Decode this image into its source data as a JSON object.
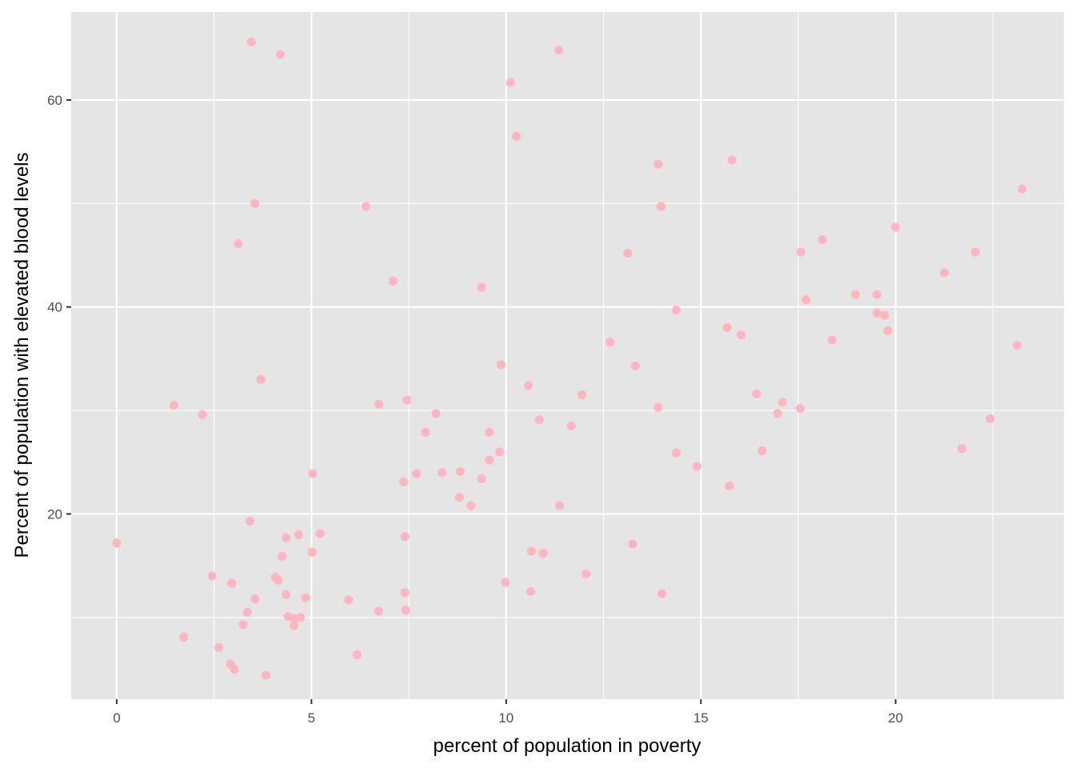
{
  "chart_data": {
    "type": "scatter",
    "xlabel": "percent of population in poverty",
    "ylabel": "Percent of population with elevated blood levels",
    "xlim": [
      -1.17,
      24.32
    ],
    "ylim": [
      2.1,
      68.5
    ],
    "x_ticks": [
      0,
      5,
      10,
      15,
      20
    ],
    "y_ticks": [
      20,
      40,
      60
    ],
    "x_tick_labels": [
      "0",
      "5",
      "10",
      "15",
      "20"
    ],
    "y_tick_labels": [
      "20",
      "40",
      "60"
    ],
    "grid": true,
    "point_color": "#FFB6C1",
    "panel_color": "#E5E5E5",
    "grid_color": "#FFFFFF",
    "points": [
      [
        3.46,
        65.6
      ],
      [
        4.2,
        64.4
      ],
      [
        11.35,
        64.8
      ],
      [
        10.11,
        61.7
      ],
      [
        10.26,
        56.5
      ],
      [
        13.9,
        53.8
      ],
      [
        15.8,
        54.2
      ],
      [
        23.25,
        51.4
      ],
      [
        3.55,
        50.0
      ],
      [
        6.4,
        49.7
      ],
      [
        13.98,
        49.7
      ],
      [
        20.0,
        47.7
      ],
      [
        3.12,
        46.1
      ],
      [
        18.12,
        46.5
      ],
      [
        13.12,
        45.2
      ],
      [
        17.57,
        45.3
      ],
      [
        22.05,
        45.3
      ],
      [
        7.1,
        42.5
      ],
      [
        21.25,
        43.3
      ],
      [
        9.37,
        41.9
      ],
      [
        18.97,
        41.2
      ],
      [
        19.52,
        41.2
      ],
      [
        17.7,
        40.7
      ],
      [
        14.37,
        39.7
      ],
      [
        19.52,
        39.4
      ],
      [
        19.72,
        39.2
      ],
      [
        15.68,
        38.0
      ],
      [
        16.03,
        37.3
      ],
      [
        19.8,
        37.7
      ],
      [
        12.67,
        36.6
      ],
      [
        18.37,
        36.8
      ],
      [
        23.12,
        36.3
      ],
      [
        9.87,
        34.4
      ],
      [
        13.32,
        34.3
      ],
      [
        3.7,
        33.0
      ],
      [
        10.57,
        32.4
      ],
      [
        16.43,
        31.6
      ],
      [
        11.95,
        31.5
      ],
      [
        17.1,
        30.8
      ],
      [
        1.47,
        30.5
      ],
      [
        6.73,
        30.6
      ],
      [
        7.45,
        31.0
      ],
      [
        13.9,
        30.3
      ],
      [
        17.55,
        30.2
      ],
      [
        2.2,
        29.6
      ],
      [
        8.2,
        29.7
      ],
      [
        16.97,
        29.7
      ],
      [
        10.85,
        29.1
      ],
      [
        22.43,
        29.2
      ],
      [
        11.67,
        28.5
      ],
      [
        7.93,
        27.9
      ],
      [
        9.57,
        27.9
      ],
      [
        9.83,
        26.0
      ],
      [
        16.57,
        26.1
      ],
      [
        21.7,
        26.3
      ],
      [
        9.57,
        25.2
      ],
      [
        14.37,
        25.9
      ],
      [
        14.9,
        24.6
      ],
      [
        5.03,
        23.9
      ],
      [
        7.7,
        23.9
      ],
      [
        8.35,
        24.0
      ],
      [
        8.82,
        24.1
      ],
      [
        9.37,
        23.4
      ],
      [
        7.37,
        23.1
      ],
      [
        15.73,
        22.7
      ],
      [
        8.8,
        21.6
      ],
      [
        9.1,
        20.8
      ],
      [
        11.37,
        20.8
      ],
      [
        3.42,
        19.3
      ],
      [
        5.22,
        18.1
      ],
      [
        4.67,
        18.0
      ],
      [
        4.35,
        17.7
      ],
      [
        7.4,
        17.8
      ],
      [
        0.0,
        17.2
      ],
      [
        13.25,
        17.1
      ],
      [
        10.65,
        16.4
      ],
      [
        10.95,
        16.2
      ],
      [
        5.02,
        16.3
      ],
      [
        4.25,
        15.9
      ],
      [
        2.45,
        14.0
      ],
      [
        12.05,
        14.2
      ],
      [
        4.07,
        13.9
      ],
      [
        4.15,
        13.6
      ],
      [
        2.95,
        13.3
      ],
      [
        9.98,
        13.4
      ],
      [
        4.35,
        12.2
      ],
      [
        7.4,
        12.4
      ],
      [
        10.63,
        12.5
      ],
      [
        14.0,
        12.3
      ],
      [
        3.55,
        11.8
      ],
      [
        4.85,
        11.9
      ],
      [
        5.95,
        11.7
      ],
      [
        6.72,
        10.6
      ],
      [
        7.42,
        10.7
      ],
      [
        3.35,
        10.5
      ],
      [
        4.4,
        10.1
      ],
      [
        4.57,
        9.9
      ],
      [
        4.72,
        10.0
      ],
      [
        4.55,
        9.2
      ],
      [
        3.25,
        9.3
      ],
      [
        1.72,
        8.1
      ],
      [
        2.62,
        7.1
      ],
      [
        6.17,
        6.4
      ],
      [
        2.92,
        5.5
      ],
      [
        3.02,
        5.0
      ],
      [
        3.83,
        4.4
      ]
    ]
  }
}
